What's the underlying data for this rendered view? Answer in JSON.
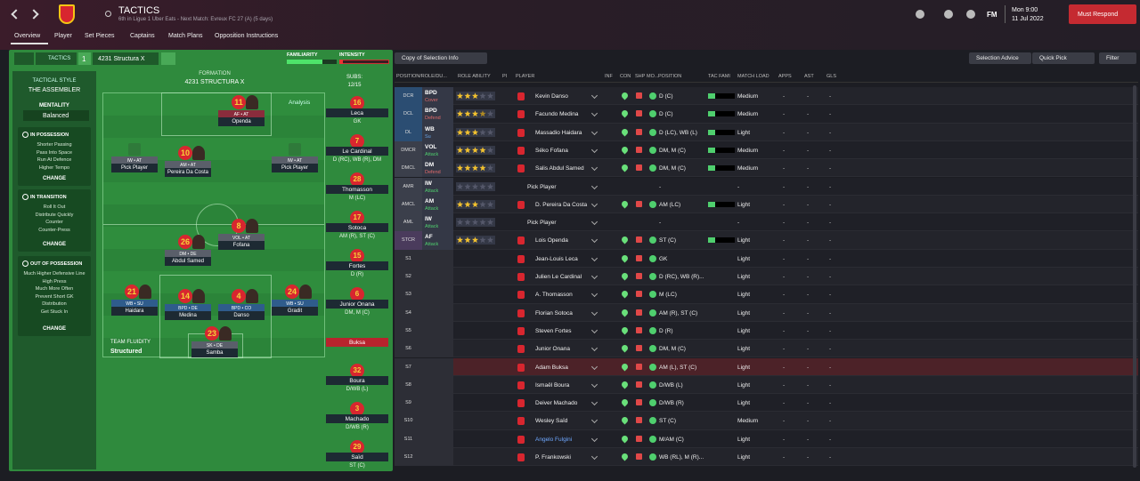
{
  "header": {
    "title": "TACTICS",
    "subtitle": "6th in Ligue 1 Uber Eats - Next Match: Evreux FC 27 (A) (5 days)",
    "logo": "FM",
    "time": "Mon 9:00",
    "date": "11 Jul 2022",
    "action": "Must Respond"
  },
  "tabs": [
    "Overview",
    "Player",
    "Set Pieces",
    "Captains",
    "Match Plans",
    "Opposition Instructions"
  ],
  "tactic": {
    "tab": "TACTICS",
    "slot": "1",
    "name": "4231 Structura X",
    "familiarity_label": "FAMILIARITY",
    "familiarity": 72,
    "intensity_label": "INTENSITY",
    "intensity": 8
  },
  "sidebar": {
    "style_label": "TACTICAL STYLE",
    "style": "THE ASSEMBLER",
    "mentality_label": "MENTALITY",
    "mentality": "Balanced",
    "change": "CHANGE",
    "sections": [
      {
        "title": "IN POSSESSION",
        "items": [
          "Shorter Passing",
          "Pass Into Space",
          "Run At Defence",
          "Higher Tempo"
        ]
      },
      {
        "title": "IN TRANSITION",
        "items": [
          "Roll It Out",
          "Distribute Quickly",
          "Counter",
          "Counter-Press"
        ]
      },
      {
        "title": "OUT OF POSSESSION",
        "items": [
          "Much Higher Defensive Line",
          "High Press",
          "Much More Often",
          "Prevent Short GK",
          "Distribution",
          "Get Stuck In"
        ]
      }
    ]
  },
  "formation": {
    "label": "FORMATION",
    "name": "4231 STRUCTURA X",
    "subs_label": "SUBS:",
    "subs": "12/15",
    "analysis": "Analysis",
    "fluidity_label": "TEAM FLUIDITY",
    "fluidity": "Structured",
    "players": [
      {
        "number": 11,
        "role": "AF • AT",
        "name": "Openda",
        "color": "#8a2c3c"
      },
      {
        "role": "IW • AT",
        "name": "Pick Player",
        "color": "#5a5f6a"
      },
      {
        "number": 10,
        "role": "AM • AT",
        "name": "Pereira Da Costa",
        "color": "#5a5f6a"
      },
      {
        "role": "IW • AT",
        "name": "Pick Player",
        "color": "#5a5f6a"
      },
      {
        "number": 8,
        "role": "VOL • AT",
        "name": "Fofana",
        "color": "#5a5f6a"
      },
      {
        "number": 26,
        "role": "DM • DE",
        "name": "Abdul Samed",
        "color": "#5a5f6a"
      },
      {
        "number": 21,
        "role": "WB • SU",
        "name": "Haidara",
        "color": "#2f5c8c"
      },
      {
        "number": 14,
        "role": "BPD • DE",
        "name": "Medina",
        "color": "#2f5c8c"
      },
      {
        "number": 4,
        "role": "BPD • CO",
        "name": "Danso",
        "color": "#2f5c8c"
      },
      {
        "number": 24,
        "role": "WB • SU",
        "name": "Gradit",
        "color": "#2f5c8c"
      },
      {
        "number": 23,
        "role": "SK • DE",
        "name": "Samba",
        "color": "#5a5f6a"
      }
    ],
    "subs_list": [
      {
        "number": 16,
        "name": "Leca",
        "position": "GK"
      },
      {
        "number": 7,
        "name": "Le Cardinal",
        "position": "D (RC), WB (R), DM"
      },
      {
        "number": 28,
        "name": "Thomasson",
        "position": "M (LC)"
      },
      {
        "number": 17,
        "name": "Sotoca",
        "position": "AM (R), ST (C)"
      },
      {
        "number": 15,
        "name": "Fortes",
        "position": "D (R)"
      },
      {
        "number": 6,
        "name": "Junior Onana",
        "position": "DM, M (C)"
      },
      {
        "name": "Buksa",
        "highlight": true
      },
      {
        "number": 32,
        "name": "Boura",
        "position": "D/WB (L)"
      },
      {
        "number": 3,
        "name": "Machado",
        "position": "D/WB (R)"
      },
      {
        "number": 29,
        "name": "Saïd",
        "position": "ST (C)"
      }
    ]
  },
  "table": {
    "copy": "Copy of Selection Info",
    "advice": "Selection Advice",
    "quick_pick": "Quick Pick",
    "filter": "Filter",
    "columns": [
      "POSITION/ROLE/DU...",
      "ROLE ABILITY",
      "PI",
      "PLAYER",
      "INF",
      "CON",
      "SHP",
      "MO...",
      "POSITION",
      "TAC FAMI",
      "MATCH LOAD",
      "APPS",
      "AST",
      "GLS"
    ],
    "rows": [
      {
        "position": "DCR",
        "role": "BPD",
        "duty": "Cover",
        "duty_color": "#e06a6a",
        "pos_color": "#2b4d72",
        "stars": 3,
        "player": "Kevin Danso",
        "positions": "D (C)",
        "tac_fami": 25,
        "match_load": "Medium",
        "apps": "-",
        "ast": "-",
        "gls": "-"
      },
      {
        "position": "DCL",
        "role": "BPD",
        "duty": "Defend",
        "duty_color": "#e06a6a",
        "pos_color": "#2b4d72",
        "stars": 3.5,
        "player": "Facundo Medina",
        "positions": "D (C)",
        "tac_fami": 25,
        "match_load": "Medium",
        "apps": "-",
        "ast": "-",
        "gls": "-"
      },
      {
        "position": "DL",
        "role": "WB",
        "duty": "Su",
        "duty_color": "#6aa6e8",
        "pos_color": "#2b4d72",
        "stars": 3,
        "player": "Massadio Haidara",
        "positions": "D (LC), WB (L)",
        "tac_fami": 25,
        "match_load": "Light",
        "apps": "-",
        "ast": "-",
        "gls": "-"
      },
      {
        "position": "DMCR",
        "role": "VOL",
        "duty": "Attack",
        "duty_color": "#4fcf6e",
        "pos_color": "#3b3f4b",
        "stars": 4,
        "player": "Séko Fofana",
        "positions": "DM, M (C)",
        "tac_fami": 25,
        "match_load": "Medium",
        "apps": "-",
        "ast": "-",
        "gls": "-"
      },
      {
        "position": "DMCL",
        "role": "DM",
        "duty": "Defend",
        "duty_color": "#e06a6a",
        "pos_color": "#3b3f4b",
        "stars": 4,
        "player": "Salis Abdul Samed",
        "positions": "DM, M (C)",
        "tac_fami": 25,
        "match_load": "Medium",
        "apps": "-",
        "ast": "-",
        "gls": "-"
      },
      {
        "position": "AMR",
        "role": "IW",
        "duty": "Attack",
        "duty_color": "#4fcf6e",
        "pos_color": "#3b3f4b",
        "stars": 0,
        "player": "Pick Player",
        "positions": "-",
        "match_load": "-",
        "apps": "-",
        "ast": "-",
        "gls": "-"
      },
      {
        "position": "AMCL",
        "role": "AM",
        "duty": "Attack",
        "duty_color": "#4fcf6e",
        "pos_color": "#3b3f4b",
        "stars": 3,
        "player": "D. Pereira Da Costa",
        "positions": "AM (LC)",
        "tac_fami": 25,
        "match_load": "Light",
        "apps": "-",
        "ast": "-",
        "gls": "-"
      },
      {
        "position": "AML",
        "role": "IW",
        "duty": "Attack",
        "duty_color": "#4fcf6e",
        "pos_color": "#3b3f4b",
        "stars": 0,
        "player": "Pick Player",
        "positions": "-",
        "match_load": "-",
        "apps": "-",
        "ast": "-",
        "gls": "-"
      },
      {
        "position": "STCR",
        "role": "AF",
        "duty": "Attack",
        "duty_color": "#4fcf6e",
        "pos_color": "#4a3b5c",
        "stars": 3,
        "player": "Lois Openda",
        "positions": "ST (C)",
        "tac_fami": 25,
        "match_load": "Light",
        "apps": "-",
        "ast": "-",
        "gls": "-"
      },
      {
        "position": "S1",
        "player": "Jean-Louis Leca",
        "positions": "GK",
        "match_load": "Light",
        "apps": "-",
        "ast": "-",
        "gls": "-"
      },
      {
        "position": "S2",
        "player": "Julien Le Cardinal",
        "positions": "D (RC), WB (R)...",
        "match_load": "Light",
        "apps": "-",
        "ast": "-",
        "gls": "-"
      },
      {
        "position": "S3",
        "player": "A. Thomasson",
        "positions": "M (LC)",
        "match_load": "Light",
        "apps": "-",
        "ast": "-",
        "gls": "-"
      },
      {
        "position": "S4",
        "player": "Florian Sotoca",
        "positions": "AM (R), ST (C)",
        "match_load": "Light",
        "apps": "-",
        "ast": "-",
        "gls": "-"
      },
      {
        "position": "S5",
        "player": "Steven Fortes",
        "positions": "D (R)",
        "match_load": "Light",
        "apps": "-",
        "ast": "-",
        "gls": "-"
      },
      {
        "position": "S6",
        "player": "Junior Onana",
        "positions": "DM, M (C)",
        "match_load": "Light",
        "apps": "-",
        "ast": "-",
        "gls": "-"
      },
      {
        "position": "S7",
        "player": "Adam Buksa",
        "positions": "AM (L), ST (C)",
        "match_load": "Light",
        "apps": "-",
        "ast": "-",
        "gls": "-",
        "highlight": true
      },
      {
        "position": "S8",
        "player": "Ismaël Boura",
        "positions": "D/WB (L)",
        "match_load": "Light",
        "apps": "-",
        "ast": "-",
        "gls": "-"
      },
      {
        "position": "S9",
        "player": "Deiver Machado",
        "positions": "D/WB (R)",
        "match_load": "Light",
        "apps": "-",
        "ast": "-",
        "gls": "-"
      },
      {
        "position": "S10",
        "player": "Wesley Saïd",
        "positions": "ST (C)",
        "match_load": "Medium",
        "apps": "-",
        "ast": "-",
        "gls": "-"
      },
      {
        "position": "S11",
        "player": "Angelo Fulgini",
        "positions": "M/AM (C)",
        "match_load": "Light",
        "apps": "-",
        "ast": "-",
        "gls": "-",
        "name_color": "#6fa8ff"
      },
      {
        "position": "S12",
        "player": "P. Frankowski",
        "positions": "WB (RL), M (R)...",
        "match_load": "Light",
        "apps": "-",
        "ast": "-",
        "gls": "-"
      }
    ]
  }
}
